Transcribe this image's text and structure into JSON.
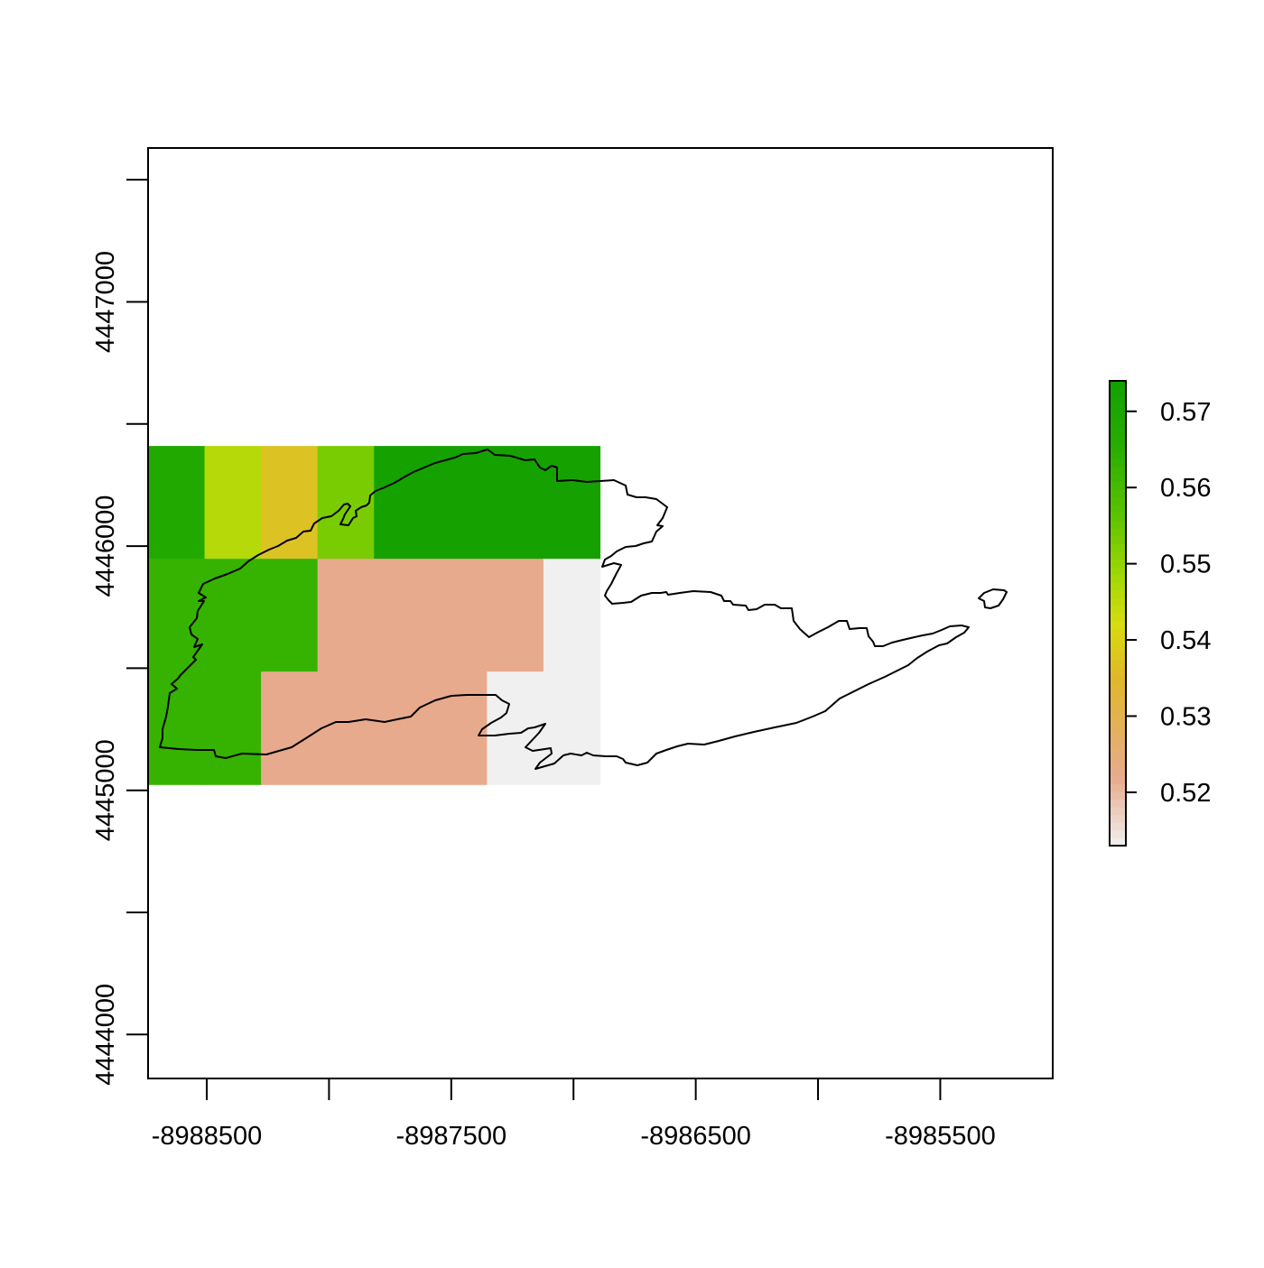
{
  "chart_data": {
    "type": "heatmap",
    "title": "",
    "xlabel": "",
    "ylabel": "",
    "xlim": [
      -8988740,
      -8985040
    ],
    "ylim": [
      4443820,
      4447630
    ],
    "x_ticks": [
      -8988500,
      -8988000,
      -8987500,
      -8987000,
      -8986500,
      -8986000,
      -8985500
    ],
    "x_tick_labels": [
      {
        "value": -8988500,
        "label": "-8988500"
      },
      {
        "value": -8987500,
        "label": "-8987500"
      },
      {
        "value": -8986500,
        "label": "-8986500"
      },
      {
        "value": -8985500,
        "label": "-8985500"
      }
    ],
    "y_ticks": [
      4444000,
      4444500,
      4445000,
      4445500,
      4446000,
      4446500,
      4447000,
      4447500
    ],
    "y_tick_labels": [
      {
        "value": 4444000,
        "label": "4444000"
      },
      {
        "value": 4445000,
        "label": "4445000"
      },
      {
        "value": 4446000,
        "label": "4446000"
      },
      {
        "value": 4447000,
        "label": "4447000"
      }
    ],
    "raster": {
      "xmin": -8988740,
      "ymax": 4446410,
      "cell_width": 462,
      "cell_height": 462,
      "rows": [
        [
          0.568,
          0.546,
          0.537,
          0.553,
          0.573,
          0.573,
          0.573,
          0.573
        ],
        [
          0.563,
          0.563,
          0.563,
          0.522,
          0.522,
          0.522,
          0.522,
          0.513
        ],
        [
          0.563,
          0.563,
          0.522,
          0.522,
          0.522,
          0.522,
          0.513,
          0.513
        ]
      ],
      "cells_wide_per_row": 2
    },
    "legend": {
      "position": "right",
      "min": 0.513,
      "max": 0.574,
      "ticks": [
        {
          "value": 0.52,
          "label": "0.52"
        },
        {
          "value": 0.53,
          "label": "0.53"
        },
        {
          "value": 0.54,
          "label": "0.54"
        },
        {
          "value": 0.55,
          "label": "0.55"
        },
        {
          "value": 0.56,
          "label": "0.56"
        },
        {
          "value": 0.57,
          "label": "0.57"
        }
      ]
    },
    "color_stops": [
      {
        "value": 0.513,
        "color": "#f0f0f0"
      },
      {
        "value": 0.522,
        "color": "#e8aa8c"
      },
      {
        "value": 0.535,
        "color": "#e0b72a"
      },
      {
        "value": 0.542,
        "color": "#d6dc10"
      },
      {
        "value": 0.548,
        "color": "#a6d806"
      },
      {
        "value": 0.556,
        "color": "#5ec400"
      },
      {
        "value": 0.565,
        "color": "#2aae00"
      },
      {
        "value": 0.574,
        "color": "#12a000"
      }
    ]
  }
}
